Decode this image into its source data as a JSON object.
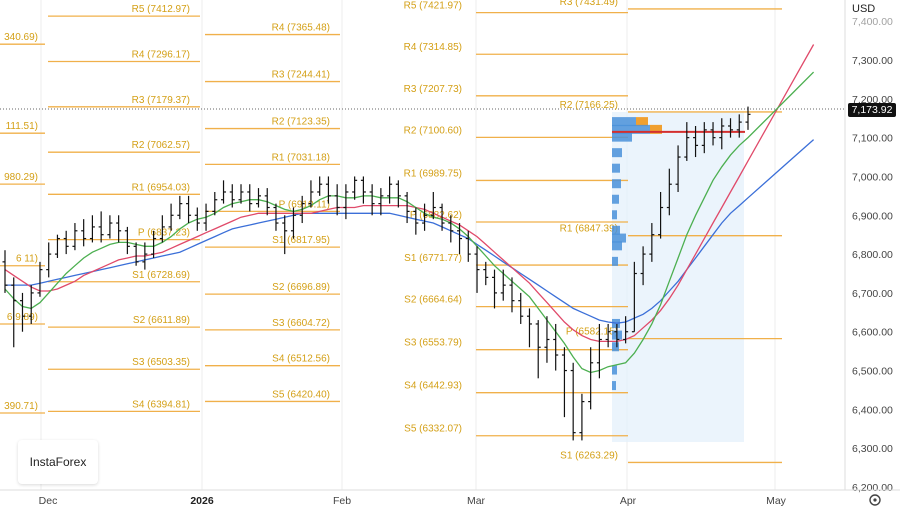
{
  "currency": "USD",
  "current_price_label": "7,173.92",
  "logo_text": "InstaForex",
  "colors": {
    "pivot": "#f0b04a",
    "pivot_text": "#d4a017",
    "ma_fast": "#4caf50",
    "ma_mid": "#e04a6a",
    "ma_slow": "#3b6fd8",
    "candle": "#111111",
    "volume_profile": "#4a90d9",
    "volume_poc": "#f0a030",
    "poc_line": "#d32f2f"
  },
  "chart_data": {
    "type": "line",
    "title": "",
    "ylim": [
      6200,
      7500
    ],
    "y_ticks": [
      "7,300.00",
      "7,200.00",
      "7,100.00",
      "7,000.00",
      "6,900.00",
      "6,800.00",
      "6,700.00",
      "6,600.00",
      "6,500.00",
      "6,400.00",
      "6,300.00",
      "6,200.00"
    ],
    "y_partial_top": "7,400.00",
    "x_ticks": [
      "Dec",
      "2026",
      "Feb",
      "Mar",
      "Apr",
      "May"
    ],
    "pivot_levels_partial": [
      "340.69)",
      "111.51)",
      "980.29)",
      "6 11)",
      "6 9.89)",
      "390.71)"
    ],
    "pivot_periods": [
      {
        "levels": [
          {
            "label": "R5 (7412.97)",
            "value": 7412.97
          },
          {
            "label": "R4 (7296.17)",
            "value": 7296.17
          },
          {
            "label": "R3 (7179.37)",
            "value": 7179.37
          },
          {
            "label": "R2 (7062.57)",
            "value": 7062.57
          },
          {
            "label": "R1 (6954.03)",
            "value": 6954.03
          },
          {
            "label": "P (6837.23)",
            "value": 6837.23
          },
          {
            "label": "S1 (6728.69)",
            "value": 6728.69
          },
          {
            "label": "S2 (6611.89)",
            "value": 6611.89
          },
          {
            "label": "S3 (6503.35)",
            "value": 6503.35
          },
          {
            "label": "S4 (6394.81)",
            "value": 6394.81
          }
        ]
      },
      {
        "levels": [
          {
            "label": "R4 (7365.48)",
            "value": 7365.48
          },
          {
            "label": "R3 (7244.41)",
            "value": 7244.41
          },
          {
            "label": "R2 (7123.35)",
            "value": 7123.35
          },
          {
            "label": "R1 (7031.18)",
            "value": 7031.18
          },
          {
            "label": "P (6910.11)",
            "value": 6910.11
          },
          {
            "label": "S1 (6817.95)",
            "value": 6817.95
          },
          {
            "label": "S2 (6696.89)",
            "value": 6696.89
          },
          {
            "label": "S3 (6604.72)",
            "value": 6604.72
          },
          {
            "label": "S4 (6512.56)",
            "value": 6512.56
          },
          {
            "label": "S5 (6420.40)",
            "value": 6420.4
          }
        ]
      },
      {
        "levels": [
          {
            "label": "R5 (7421.97)",
            "value": 7421.97
          },
          {
            "label": "R4 (7314.85)",
            "value": 7314.85
          },
          {
            "label": "R3 (7207.73)",
            "value": 7207.73
          },
          {
            "label": "R2 (7100.60)",
            "value": 7100.6
          },
          {
            "label": "R1 (6989.75)",
            "value": 6989.75
          },
          {
            "label": "P (6882.62)",
            "value": 6882.62
          },
          {
            "label": "S1 (6771.77)",
            "value": 6771.77
          },
          {
            "label": "S2 (6664.64)",
            "value": 6664.64
          },
          {
            "label": "S3 (6553.79)",
            "value": 6553.79
          },
          {
            "label": "S4 (6442.93)",
            "value": 6442.93
          },
          {
            "label": "S5 (6332.07)",
            "value": 6332.07
          }
        ]
      },
      {
        "levels": [
          {
            "label": "R3 (7431.49)",
            "value": 7431.49
          },
          {
            "label": "R2 (7166.25)",
            "value": 7166.25
          },
          {
            "label": "R1 (6847.39)",
            "value": 6847.39
          },
          {
            "label": "P (6582.15)",
            "value": 6582.15
          },
          {
            "label": "S1 (6263.29)",
            "value": 6263.29
          }
        ]
      }
    ],
    "candles": [
      [
        6780,
        6720,
        6810,
        6700
      ],
      [
        6720,
        6680,
        6740,
        6560
      ],
      [
        6680,
        6640,
        6700,
        6600
      ],
      [
        6640,
        6700,
        6720,
        6620
      ],
      [
        6700,
        6760,
        6780,
        6690
      ],
      [
        6760,
        6800,
        6830,
        6740
      ],
      [
        6800,
        6840,
        6850,
        6790
      ],
      [
        6840,
        6820,
        6860,
        6800
      ],
      [
        6820,
        6860,
        6880,
        6810
      ],
      [
        6860,
        6840,
        6890,
        6820
      ],
      [
        6840,
        6870,
        6900,
        6830
      ],
      [
        6870,
        6850,
        6910,
        6830
      ],
      [
        6850,
        6880,
        6900,
        6840
      ],
      [
        6880,
        6860,
        6900,
        6830
      ],
      [
        6860,
        6820,
        6870,
        6800
      ],
      [
        6820,
        6780,
        6830,
        6770
      ],
      [
        6780,
        6800,
        6830,
        6760
      ],
      [
        6800,
        6840,
        6860,
        6790
      ],
      [
        6840,
        6870,
        6900,
        6830
      ],
      [
        6870,
        6900,
        6930,
        6860
      ],
      [
        6900,
        6930,
        6950,
        6890
      ],
      [
        6930,
        6900,
        6950,
        6880
      ],
      [
        6900,
        6880,
        6920,
        6860
      ],
      [
        6880,
        6910,
        6930,
        6860
      ],
      [
        6910,
        6940,
        6960,
        6900
      ],
      [
        6940,
        6960,
        6990,
        6930
      ],
      [
        6960,
        6940,
        6980,
        6920
      ],
      [
        6940,
        6960,
        6980,
        6930
      ],
      [
        6960,
        6930,
        6980,
        6910
      ],
      [
        6930,
        6950,
        6970,
        6920
      ],
      [
        6950,
        6920,
        6970,
        6900
      ],
      [
        6920,
        6880,
        6930,
        6860
      ],
      [
        6880,
        6860,
        6900,
        6800
      ],
      [
        6860,
        6900,
        6920,
        6840
      ],
      [
        6900,
        6930,
        6950,
        6880
      ],
      [
        6930,
        6960,
        6990,
        6920
      ],
      [
        6960,
        6980,
        7000,
        6950
      ],
      [
        6980,
        6950,
        7000,
        6930
      ],
      [
        6950,
        6920,
        6980,
        6900
      ],
      [
        6920,
        6960,
        6980,
        6890
      ],
      [
        6960,
        6990,
        7000,
        6940
      ],
      [
        6990,
        6960,
        7000,
        6930
      ],
      [
        6960,
        6930,
        6980,
        6900
      ],
      [
        6930,
        6950,
        6970,
        6900
      ],
      [
        6950,
        6980,
        7000,
        6930
      ],
      [
        6980,
        6950,
        6990,
        6920
      ],
      [
        6950,
        6910,
        6960,
        6880
      ],
      [
        6910,
        6880,
        6920,
        6850
      ],
      [
        6880,
        6900,
        6930,
        6860
      ],
      [
        6900,
        6920,
        6960,
        6890
      ],
      [
        6920,
        6880,
        6930,
        6860
      ],
      [
        6880,
        6860,
        6900,
        6830
      ],
      [
        6860,
        6840,
        6880,
        6800
      ],
      [
        6840,
        6800,
        6860,
        6780
      ],
      [
        6800,
        6760,
        6820,
        6700
      ],
      [
        6760,
        6740,
        6780,
        6720
      ],
      [
        6740,
        6700,
        6760,
        6660
      ],
      [
        6700,
        6720,
        6760,
        6680
      ],
      [
        6720,
        6680,
        6740,
        6650
      ],
      [
        6680,
        6640,
        6700,
        6620
      ],
      [
        6640,
        6620,
        6660,
        6560
      ],
      [
        6620,
        6560,
        6630,
        6480
      ],
      [
        6560,
        6580,
        6640,
        6520
      ],
      [
        6580,
        6540,
        6620,
        6500
      ],
      [
        6540,
        6500,
        6560,
        6380
      ],
      [
        6500,
        6340,
        6520,
        6320
      ],
      [
        6340,
        6420,
        6440,
        6320
      ],
      [
        6420,
        6520,
        6560,
        6400
      ],
      [
        6520,
        6580,
        6620,
        6480
      ],
      [
        6580,
        6600,
        6620,
        6560
      ],
      [
        6600,
        6580,
        6620,
        6560
      ],
      [
        6580,
        6600,
        6640,
        6570
      ],
      [
        6600,
        6750,
        6780,
        6600
      ],
      [
        6750,
        6800,
        6820,
        6720
      ],
      [
        6800,
        6850,
        6880,
        6780
      ],
      [
        6850,
        6920,
        6960,
        6840
      ],
      [
        6920,
        6980,
        7020,
        6900
      ],
      [
        6980,
        7050,
        7080,
        6960
      ],
      [
        7050,
        7100,
        7140,
        7040
      ],
      [
        7100,
        7080,
        7130,
        7050
      ],
      [
        7080,
        7120,
        7140,
        7060
      ],
      [
        7120,
        7100,
        7140,
        7080
      ],
      [
        7100,
        7130,
        7150,
        7070
      ],
      [
        7130,
        7120,
        7150,
        7100
      ],
      [
        7120,
        7140,
        7160,
        7100
      ],
      [
        7140,
        7160,
        7180,
        7120
      ]
    ],
    "ma_fast": [
      6710,
      6685,
      6665,
      6660,
      6675,
      6700,
      6725,
      6750,
      6770,
      6790,
      6805,
      6815,
      6825,
      6830,
      6830,
      6825,
      6820,
      6820,
      6830,
      6845,
      6865,
      6880,
      6890,
      6895,
      6905,
      6920,
      6930,
      6935,
      6940,
      6940,
      6935,
      6925,
      6915,
      6910,
      6915,
      6925,
      6940,
      6950,
      6950,
      6945,
      6945,
      6950,
      6950,
      6945,
      6945,
      6945,
      6935,
      6920,
      6905,
      6895,
      6890,
      6880,
      6865,
      6845,
      6820,
      6795,
      6770,
      6750,
      6730,
      6710,
      6690,
      6660,
      6630,
      6600,
      6570,
      6535,
      6505,
      6495,
      6500,
      6510,
      6515,
      6520,
      6545,
      6580,
      6620,
      6670,
      6730,
      6790,
      6850,
      6900,
      6945,
      6990,
      7025,
      7055,
      7080,
      7100
    ],
    "ma_mid": [
      6760,
      6745,
      6730,
      6715,
      6705,
      6705,
      6710,
      6720,
      6730,
      6745,
      6755,
      6765,
      6775,
      6785,
      6790,
      6795,
      6795,
      6800,
      6805,
      6815,
      6825,
      6835,
      6845,
      6855,
      6865,
      6875,
      6885,
      6895,
      6900,
      6905,
      6905,
      6905,
      6905,
      6905,
      6905,
      6905,
      6910,
      6915,
      6920,
      6920,
      6920,
      6925,
      6925,
      6925,
      6925,
      6925,
      6925,
      6920,
      6915,
      6905,
      6895,
      6885,
      6875,
      6860,
      6845,
      6825,
      6805,
      6785,
      6765,
      6745,
      6725,
      6700,
      6675,
      6650,
      6625,
      6605,
      6590,
      6580,
      6575,
      6575,
      6575,
      6580,
      6590,
      6610,
      6630,
      6655,
      6685,
      6720,
      6760,
      6800,
      6840,
      6880,
      6920,
      6960,
      7000,
      7040
    ],
    "ma_slow": [
      6720,
      6720,
      6720,
      6720,
      6725,
      6730,
      6735,
      6740,
      6745,
      6750,
      6755,
      6760,
      6765,
      6770,
      6775,
      6780,
      6785,
      6790,
      6795,
      6800,
      6805,
      6815,
      6825,
      6835,
      6845,
      6855,
      6865,
      6870,
      6875,
      6880,
      6885,
      6890,
      6895,
      6900,
      6905,
      6905,
      6905,
      6905,
      6905,
      6905,
      6905,
      6905,
      6905,
      6905,
      6905,
      6900,
      6895,
      6890,
      6885,
      6880,
      6870,
      6860,
      6850,
      6840,
      6825,
      6810,
      6795,
      6780,
      6765,
      6750,
      6735,
      6720,
      6705,
      6690,
      6675,
      6660,
      6650,
      6640,
      6630,
      6625,
      6622,
      6625,
      6635,
      6645,
      6660,
      6680,
      6705,
      6730,
      6760,
      6790,
      6820,
      6850,
      6880,
      6905,
      6925,
      6945
    ]
  }
}
